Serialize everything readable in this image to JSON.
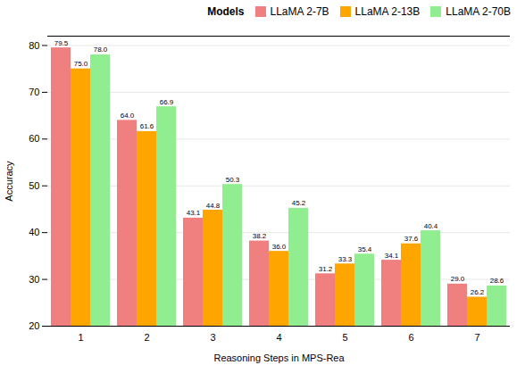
{
  "chart_data": {
    "type": "bar",
    "categories": [
      1,
      2,
      3,
      4,
      5,
      6,
      7
    ],
    "series": [
      {
        "name": "LLaMA 2-7B",
        "color": "#F08080",
        "values": [
          79.5,
          64.0,
          43.1,
          38.2,
          31.2,
          34.1,
          29.0
        ],
        "value_labels": [
          "79.5",
          "64.0",
          "43.1",
          "38.2",
          "31.2",
          "34.1",
          "29.0"
        ]
      },
      {
        "name": "LLaMA 2-13B",
        "color": "#FFA500",
        "values": [
          75.0,
          61.6,
          44.8,
          36.0,
          33.3,
          37.6,
          26.2
        ],
        "value_labels": [
          "75.0",
          "61.6",
          "44.8",
          "36.0",
          "33.3",
          "37.6",
          "26.2"
        ]
      },
      {
        "name": "LLaMA 2-70B",
        "color": "#90EE90",
        "values": [
          78.0,
          66.9,
          50.3,
          45.2,
          35.4,
          40.4,
          28.6
        ],
        "value_labels": [
          "78.0",
          "66.9",
          "50.3",
          "45.2",
          "35.4",
          "40.4",
          "28.6"
        ]
      }
    ],
    "xlabel": "Reasoning Steps in MPS-Rea",
    "ylabel": "Accuracy",
    "legend_title": "Models",
    "legend": "upper right",
    "ylim": [
      20,
      82
    ],
    "yticks": [
      20,
      30,
      40,
      50,
      60,
      70,
      80
    ],
    "grid": true,
    "data_labels": true
  }
}
